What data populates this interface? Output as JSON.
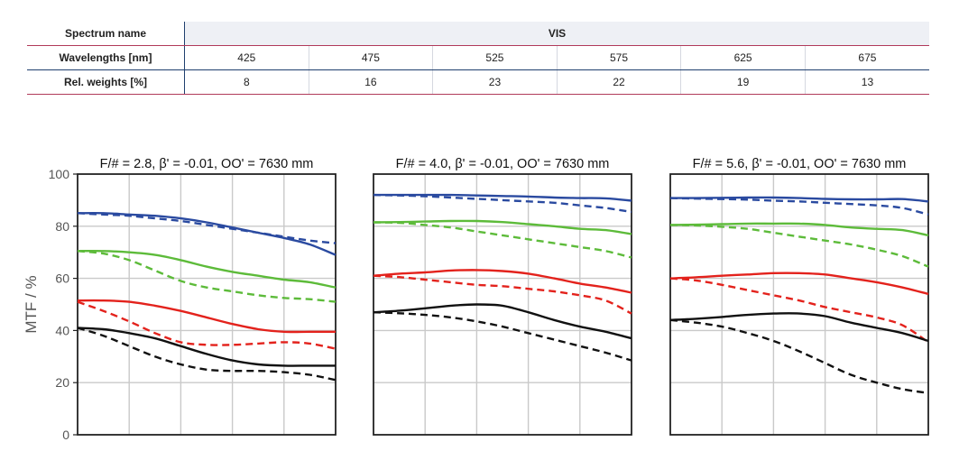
{
  "spectrum_table": {
    "spectrum_label": "Spectrum name",
    "spectrum_value": "VIS",
    "wavelength_label": "Wavelengths [nm]",
    "weights_label": "Rel. weights [%]",
    "wavelengths": [
      "425",
      "475",
      "525",
      "575",
      "625",
      "675"
    ],
    "weights": [
      "8",
      "16",
      "23",
      "22",
      "19",
      "13"
    ]
  },
  "colors": {
    "blue": "#2a4aa0",
    "green": "#5dbb3a",
    "red": "#e3221c",
    "black": "#111111"
  },
  "chart_data": [
    {
      "type": "line",
      "title": "F/# = 2.8, β' = -0.01, OO' = 7630 mm",
      "ylabel": "MTF / %",
      "ylim": [
        0,
        100
      ],
      "yticks": [
        0,
        20,
        40,
        60,
        80,
        100
      ],
      "xlim": [
        0,
        1
      ],
      "grid": true,
      "x": [
        0,
        0.1,
        0.2,
        0.3,
        0.4,
        0.5,
        0.6,
        0.7,
        0.8,
        0.9,
        1.0
      ],
      "series": [
        {
          "color": "blue",
          "style": "solid",
          "values": [
            85,
            85,
            84.5,
            84,
            83,
            81.5,
            79.5,
            77.5,
            75.5,
            73,
            69
          ]
        },
        {
          "color": "blue",
          "style": "dashed",
          "values": [
            85,
            84.5,
            84,
            83,
            82,
            80.5,
            79,
            77.5,
            76,
            74.5,
            73.5
          ]
        },
        {
          "color": "green",
          "style": "solid",
          "values": [
            70.5,
            70.5,
            70,
            69,
            67,
            64.5,
            62.5,
            61,
            59.5,
            58.5,
            56.5
          ]
        },
        {
          "color": "green",
          "style": "dashed",
          "values": [
            70.5,
            69.5,
            67,
            63,
            59,
            56.5,
            55,
            53.5,
            52.5,
            52,
            51
          ]
        },
        {
          "color": "red",
          "style": "solid",
          "values": [
            51.5,
            51.5,
            51,
            49.5,
            47.5,
            45,
            42.5,
            40.5,
            39.5,
            39.5,
            39.5
          ]
        },
        {
          "color": "red",
          "style": "dashed",
          "values": [
            51,
            47.5,
            43.5,
            39,
            35.5,
            34.5,
            34.5,
            35,
            35.5,
            35,
            33
          ]
        },
        {
          "color": "black",
          "style": "solid",
          "values": [
            41,
            40.5,
            39,
            37,
            34,
            31,
            28.5,
            27,
            26.5,
            26.5,
            26.5
          ]
        },
        {
          "color": "black",
          "style": "dashed",
          "values": [
            41,
            38,
            34,
            30,
            27,
            25,
            24.5,
            24.5,
            24,
            23,
            21
          ]
        }
      ]
    },
    {
      "type": "line",
      "title": "F/# = 4.0, β' = -0.01, OO' = 7630 mm",
      "ylim": [
        0,
        100
      ],
      "xlim": [
        0,
        1
      ],
      "grid": true,
      "x": [
        0,
        0.1,
        0.2,
        0.3,
        0.4,
        0.5,
        0.6,
        0.7,
        0.8,
        0.9,
        1.0
      ],
      "series": [
        {
          "color": "blue",
          "style": "solid",
          "values": [
            92,
            92,
            92,
            92,
            91.8,
            91.6,
            91.4,
            91,
            90.8,
            90.7,
            89.8
          ]
        },
        {
          "color": "blue",
          "style": "dashed",
          "values": [
            92,
            91.8,
            91.5,
            91,
            90.5,
            90,
            89.5,
            89,
            88,
            87,
            85.5
          ]
        },
        {
          "color": "green",
          "style": "solid",
          "values": [
            81.5,
            81.6,
            81.8,
            82,
            82,
            81.6,
            80.8,
            80,
            79,
            78.5,
            77
          ]
        },
        {
          "color": "green",
          "style": "dashed",
          "values": [
            81.5,
            81.3,
            80.5,
            79.5,
            78,
            76.5,
            75,
            73.5,
            72,
            70.5,
            68
          ]
        },
        {
          "color": "red",
          "style": "solid",
          "values": [
            61,
            61.8,
            62.3,
            63,
            63.2,
            62.8,
            61.8,
            60,
            58,
            56.5,
            54.5
          ]
        },
        {
          "color": "red",
          "style": "dashed",
          "values": [
            61,
            60.5,
            59.5,
            58.5,
            57.5,
            57,
            56,
            55,
            53.5,
            51.5,
            46.5
          ]
        },
        {
          "color": "black",
          "style": "solid",
          "values": [
            47,
            47.6,
            48.5,
            49.5,
            50,
            49.5,
            47,
            44,
            41.5,
            39.5,
            37
          ]
        },
        {
          "color": "black",
          "style": "dashed",
          "values": [
            47,
            46.6,
            46,
            45,
            43.5,
            41.5,
            39,
            36.5,
            34,
            31.5,
            28.5
          ]
        }
      ]
    },
    {
      "type": "line",
      "title": "F/# = 5.6, β' = -0.01, OO' = 7630 mm",
      "ylim": [
        0,
        100
      ],
      "xlim": [
        0,
        1
      ],
      "grid": true,
      "x": [
        0,
        0.1,
        0.2,
        0.3,
        0.4,
        0.5,
        0.6,
        0.7,
        0.8,
        0.9,
        1.0
      ],
      "series": [
        {
          "color": "blue",
          "style": "solid",
          "values": [
            90.8,
            90.8,
            90.9,
            91,
            91,
            90.8,
            90.5,
            90.3,
            90.3,
            90.4,
            89.5
          ]
        },
        {
          "color": "blue",
          "style": "dashed",
          "values": [
            90.8,
            90.6,
            90.4,
            90.2,
            89.8,
            89.5,
            89,
            88.5,
            88,
            87,
            84.5
          ]
        },
        {
          "color": "green",
          "style": "solid",
          "values": [
            80.5,
            80.6,
            80.8,
            81,
            81,
            81,
            80.5,
            79.5,
            79,
            78.5,
            76.5
          ]
        },
        {
          "color": "green",
          "style": "dashed",
          "values": [
            80.5,
            80.3,
            79.8,
            79,
            77.5,
            76,
            74.5,
            73,
            71,
            68.5,
            64.5
          ]
        },
        {
          "color": "red",
          "style": "solid",
          "values": [
            60,
            60.4,
            61,
            61.5,
            62,
            62,
            61.5,
            60,
            58.5,
            56.5,
            54
          ]
        },
        {
          "color": "red",
          "style": "dashed",
          "values": [
            60,
            59.2,
            57.5,
            55.5,
            53.5,
            51.5,
            49,
            47,
            45,
            42,
            35.5
          ]
        },
        {
          "color": "black",
          "style": "solid",
          "values": [
            44,
            44.5,
            45.2,
            46,
            46.5,
            46.5,
            45.5,
            43,
            41,
            39,
            36
          ]
        },
        {
          "color": "black",
          "style": "dashed",
          "values": [
            44,
            43,
            41.5,
            39,
            36,
            32,
            27.5,
            23,
            20,
            17.5,
            16
          ]
        }
      ]
    }
  ]
}
